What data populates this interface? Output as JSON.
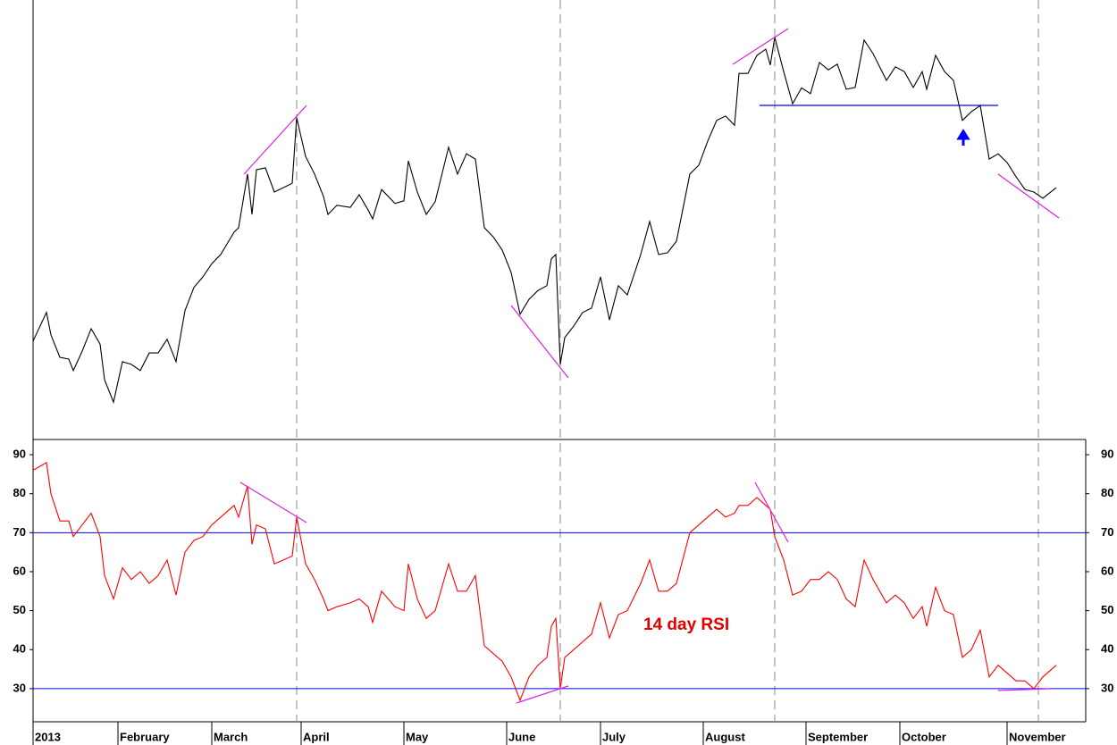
{
  "chart_data": [
    {
      "type": "line",
      "color": "#000000",
      "ylim": [
        0,
        100
      ],
      "xlim": [
        0,
        235
      ],
      "vlines": [
        59,
        118,
        166,
        225
      ],
      "x": [
        0,
        3,
        4,
        6,
        8,
        9,
        11,
        13,
        15,
        16,
        18,
        20,
        22,
        24,
        26,
        28,
        30,
        32,
        34,
        36,
        38,
        40,
        42,
        45,
        46,
        48,
        49,
        50,
        52,
        54,
        56,
        58,
        59,
        61,
        63,
        65,
        66,
        68,
        71,
        73,
        75,
        76,
        78,
        81,
        83,
        84,
        86,
        88,
        90,
        93,
        95,
        97,
        99,
        101,
        103,
        105,
        107,
        109,
        111,
        113,
        115,
        116,
        117,
        118,
        119,
        121,
        123,
        125,
        127,
        129,
        131,
        133,
        136,
        138,
        140,
        142,
        144,
        147,
        149,
        151,
        153,
        155,
        157,
        158,
        160,
        162,
        164,
        165,
        166,
        168,
        170,
        172,
        174,
        176,
        178,
        180,
        182,
        184,
        186,
        188,
        191,
        193,
        195,
        197,
        199,
        200,
        202,
        204,
        206,
        208,
        210,
        212,
        214,
        216,
        218,
        220,
        222,
        224,
        226,
        229
      ],
      "values": [
        22.4,
        28.9,
        23.8,
        18.7,
        18.3,
        15.7,
        20.1,
        25.2,
        21.7,
        13.6,
        8.5,
        17.7,
        17.1,
        15.7,
        19.7,
        19.7,
        22.8,
        17.7,
        29.3,
        34.6,
        37,
        40,
        42.1,
        47.2,
        48.2,
        60.4,
        51.2,
        61.4,
        61.8,
        56.3,
        57.3,
        58.3,
        73.2,
        64.4,
        60.4,
        55.3,
        51.2,
        53.3,
        52.8,
        55.7,
        52.2,
        50.2,
        56.9,
        53.7,
        54.3,
        63.4,
        56.3,
        51.2,
        54.1,
        66.5,
        60.4,
        65,
        63.8,
        48.2,
        46.1,
        43.1,
        38,
        28.5,
        31.9,
        33.9,
        35,
        41.1,
        42.1,
        17.1,
        23.2,
        25.8,
        28.9,
        29.9,
        37,
        27.2,
        35,
        32.9,
        42.1,
        49.6,
        42.1,
        42.5,
        45.1,
        60.4,
        62.4,
        67.9,
        72.6,
        73.6,
        71.5,
        83.3,
        83.3,
        87.4,
        88.8,
        85.2,
        91.5,
        83.7,
        76.4,
        80,
        78.7,
        85.8,
        84.1,
        85.4,
        79.7,
        80.1,
        90.9,
        87.8,
        81.7,
        84.8,
        83.7,
        80.1,
        83.7,
        79.7,
        87.4,
        83.7,
        81.7,
        72.6,
        74.6,
        76,
        63.8,
        65,
        63,
        59.8,
        56.9,
        56.3,
        54.9,
        57.3
      ]
    },
    {
      "type": "line",
      "title": "14 day RSI",
      "color": "#ff0000",
      "ylim": [
        21.5,
        93.9
      ],
      "yticks": [
        30,
        40,
        50,
        60,
        70,
        80,
        90
      ],
      "hlines": [
        70,
        30
      ],
      "hline_color": "#0000ff",
      "xlim": [
        0,
        235
      ],
      "xticks": [
        {
          "value": 0,
          "label": "2013"
        },
        {
          "value": 19,
          "label": "February"
        },
        {
          "value": 40,
          "label": "March"
        },
        {
          "value": 60,
          "label": "April"
        },
        {
          "value": 83,
          "label": "May"
        },
        {
          "value": 106,
          "label": "June"
        },
        {
          "value": 127,
          "label": "July"
        },
        {
          "value": 150,
          "label": "August"
        },
        {
          "value": 173,
          "label": "September"
        },
        {
          "value": 194,
          "label": "October"
        },
        {
          "value": 218,
          "label": "November"
        }
      ],
      "x": [
        0,
        3,
        4,
        6,
        8,
        9,
        11,
        13,
        15,
        16,
        18,
        20,
        22,
        24,
        26,
        28,
        30,
        32,
        34,
        36,
        38,
        40,
        42,
        45,
        46,
        48,
        49,
        50,
        52,
        54,
        56,
        58,
        59,
        61,
        63,
        65,
        66,
        68,
        71,
        73,
        75,
        76,
        78,
        81,
        83,
        84,
        86,
        88,
        90,
        93,
        95,
        97,
        99,
        101,
        103,
        105,
        107,
        109,
        111,
        113,
        115,
        116,
        117,
        118,
        119,
        121,
        123,
        125,
        127,
        129,
        131,
        133,
        136,
        138,
        140,
        142,
        144,
        147,
        149,
        151,
        153,
        155,
        157,
        158,
        160,
        162,
        164,
        165,
        166,
        168,
        170,
        172,
        174,
        176,
        178,
        180,
        182,
        184,
        186,
        188,
        191,
        193,
        195,
        197,
        199,
        200,
        202,
        204,
        206,
        208,
        210,
        212,
        214,
        216,
        218,
        220,
        222,
        224,
        226,
        229
      ],
      "values": [
        86,
        88,
        80,
        73,
        73,
        69,
        72,
        75,
        69,
        59,
        53,
        61,
        58,
        60,
        57,
        59,
        63,
        54,
        65,
        68,
        69,
        72,
        74,
        77,
        74,
        82,
        67,
        72,
        71,
        62,
        63,
        64,
        74,
        62,
        58,
        53,
        50,
        51,
        52,
        53,
        51,
        47,
        55,
        51,
        50,
        62,
        53,
        48,
        50,
        62,
        55,
        55,
        59,
        41,
        39,
        37,
        33,
        27,
        33,
        36,
        38,
        46,
        48,
        30,
        38,
        40,
        42,
        44,
        52,
        43,
        49,
        50,
        57,
        63,
        55,
        55,
        57,
        70,
        72,
        74,
        76,
        74,
        75,
        77,
        77,
        79,
        77,
        76,
        69,
        63,
        54,
        55,
        58,
        58,
        60,
        58,
        53,
        51,
        63,
        58,
        52,
        54,
        52,
        48,
        51,
        46,
        56,
        50,
        49,
        38,
        40,
        45,
        33,
        36,
        34,
        32,
        32,
        30,
        33,
        36
      ]
    }
  ]
}
